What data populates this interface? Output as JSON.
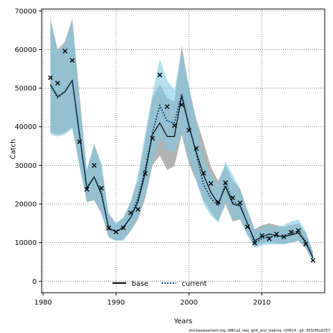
{
  "chart_data": {
    "type": "line",
    "xlabel": "Years",
    "ylabel": "Catch",
    "xlim": [
      1979.8,
      2018.6
    ],
    "ylim": [
      -3000,
      70500
    ],
    "xticks": [
      1980,
      1990,
      2000,
      2010
    ],
    "yticks": [
      0,
      10000,
      20000,
      30000,
      40000,
      50000,
      60000,
      70000
    ],
    "grid": true,
    "legend_position": "bottom-center",
    "colors": {
      "base_line": "#000000",
      "base_band": "#a6a6a6",
      "current_line": "#0b3d6b",
      "current_band": "#7ec8e3",
      "overlap_band": "#96b5c8",
      "observed_marker": "#000000",
      "grid": "#555555"
    },
    "series": [
      {
        "name": "base",
        "style": "solid",
        "x": [
          1981,
          1982,
          1983,
          1984,
          1985,
          1986,
          1987,
          1988,
          1989,
          1990,
          1991,
          1992,
          1993,
          1994,
          1995,
          1996,
          1997,
          1998,
          1999,
          2000,
          2001,
          2002,
          2003,
          2004,
          2005,
          2006,
          2007,
          2008,
          2009,
          2010,
          2011,
          2012,
          2013,
          2014,
          2015,
          2016,
          2017
        ],
        "y": [
          51000,
          47800,
          49000,
          52000,
          38000,
          24000,
          27000,
          22500,
          13800,
          12800,
          14000,
          16500,
          20500,
          28000,
          38000,
          41000,
          37500,
          37500,
          48000,
          40000,
          33500,
          27500,
          23000,
          20000,
          24500,
          20000,
          19500,
          15000,
          10500,
          11500,
          12200,
          11800,
          11500,
          12000,
          12500,
          10000,
          6000
        ],
        "lower": [
          38500,
          38000,
          38500,
          40000,
          30000,
          20500,
          21000,
          17500,
          11500,
          10500,
          10800,
          13000,
          16000,
          21500,
          30000,
          32500,
          28800,
          29800,
          38000,
          30500,
          26000,
          21000,
          18000,
          15500,
          20000,
          15500,
          16000,
          12000,
          9000,
          9800,
          10000,
          9800,
          9600,
          10000,
          10500,
          8500,
          5000
        ],
        "upper": [
          68000,
          60000,
          62000,
          68000,
          48000,
          28500,
          35500,
          30000,
          17500,
          15000,
          16500,
          20500,
          26000,
          36500,
          47500,
          51000,
          47500,
          46500,
          61000,
          50000,
          42000,
          36000,
          29500,
          26000,
          30000,
          26000,
          24000,
          18500,
          13500,
          14500,
          15000,
          14500,
          14000,
          14500,
          15000,
          12500,
          7500
        ]
      },
      {
        "name": "current",
        "style": "dotted",
        "x": [
          1981,
          1982,
          1983,
          1984,
          1985,
          1986,
          1987,
          1988,
          1989,
          1990,
          1991,
          1992,
          1993,
          1994,
          1995,
          1996,
          1997,
          1998,
          1999,
          2000,
          2001,
          2002,
          2003,
          2004,
          2005,
          2006,
          2007,
          2008,
          2009,
          2010,
          2011,
          2012,
          2013,
          2014,
          2015,
          2016,
          2017
        ],
        "y": [
          50800,
          47500,
          49200,
          52000,
          37500,
          24500,
          27000,
          23000,
          13500,
          12800,
          13800,
          16500,
          21500,
          29000,
          38500,
          45500,
          41500,
          41000,
          48500,
          40500,
          33000,
          25000,
          21500,
          19500,
          25500,
          20500,
          19800,
          15000,
          10000,
          11000,
          11500,
          11500,
          11800,
          12500,
          13000,
          10500,
          6000
        ],
        "lower": [
          38000,
          37500,
          38000,
          39500,
          29500,
          20500,
          21000,
          17500,
          11200,
          10500,
          10500,
          13000,
          16500,
          22500,
          30500,
          37500,
          34000,
          33500,
          39000,
          31500,
          26000,
          20000,
          17000,
          15200,
          20500,
          16000,
          16000,
          12000,
          8500,
          9300,
          9500,
          9500,
          9600,
          10000,
          10500,
          8700,
          5000
        ],
        "upper": [
          67500,
          59500,
          61500,
          67500,
          47000,
          29000,
          35500,
          30500,
          17300,
          15000,
          16300,
          20500,
          27500,
          38500,
          48500,
          57500,
          52000,
          49500,
          59500,
          50500,
          41500,
          31500,
          27500,
          25000,
          31000,
          27500,
          24000,
          18500,
          13000,
          14000,
          14500,
          14000,
          14500,
          15500,
          16000,
          13000,
          7500
        ]
      }
    ],
    "observed": {
      "marker": "x",
      "x": [
        1981,
        1982,
        1983,
        1984,
        1985,
        1986,
        1987,
        1988,
        1989,
        1990,
        1991,
        1992,
        1993,
        1994,
        1995,
        1996,
        1997,
        1998,
        1999,
        2000,
        2001,
        2002,
        2003,
        2004,
        2005,
        2006,
        2007,
        2008,
        2009,
        2010,
        2011,
        2012,
        2013,
        2014,
        2015,
        2016,
        2017
      ],
      "y": [
        52700,
        51300,
        59600,
        57200,
        36100,
        23800,
        30000,
        24100,
        13800,
        12800,
        13800,
        17700,
        18600,
        27900,
        37000,
        53400,
        45200,
        40300,
        45700,
        39100,
        34400,
        28000,
        25300,
        20500,
        25500,
        21600,
        20300,
        14100,
        9900,
        11800,
        11000,
        12200,
        11500,
        12700,
        13100,
        9600,
        5400
      ]
    }
  },
  "legend": {
    "base_label": "base",
    "current_label": "current"
  },
  "footer": {
    "text": "stockassessment.org, WBCod_new_split_and_reakrea, r10614 , git: 503cf91af157"
  }
}
